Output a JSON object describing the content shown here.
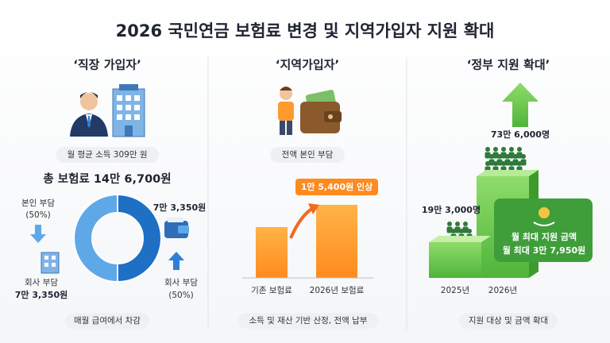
{
  "title": "2026 국민연금 보험료 변경 및 지역가입자 지원 확대",
  "employee": {
    "heading": "‘직장 가입자’",
    "income": "월 평균 소득 309만 원",
    "total": "총 보험료 14만 6,700원",
    "segments": [
      {
        "name": "본인 부담",
        "value": 50,
        "value_label": "(50%)",
        "amount": "7만 3,350원",
        "color": "#5fa8e8"
      },
      {
        "name": "회사 부담",
        "value": 50,
        "value_label": "(50%)",
        "amount": "7만 3,350원",
        "color": "#1f6fc4"
      }
    ],
    "footer": "매월 급여에서 차감"
  },
  "regional": {
    "heading": "‘지역가입자’",
    "burden": "전액 본인 부담",
    "increase": "1만 5,400원 인상",
    "bars": [
      "기존 보험료",
      "2026년 보험료"
    ],
    "footer": "소득 및 재산 기반 산정, 전액 납부"
  },
  "support": {
    "heading": "‘정부 지원 확대’",
    "people_2025": "19만 3,000명",
    "people_2026": "73만 6,000명",
    "years": [
      "2025년",
      "2026년"
    ],
    "callout": [
      "월 최대 지원 금액",
      "월 최대 3만 7,950원"
    ],
    "footer": "지원 대상 및 금액 확대"
  }
}
